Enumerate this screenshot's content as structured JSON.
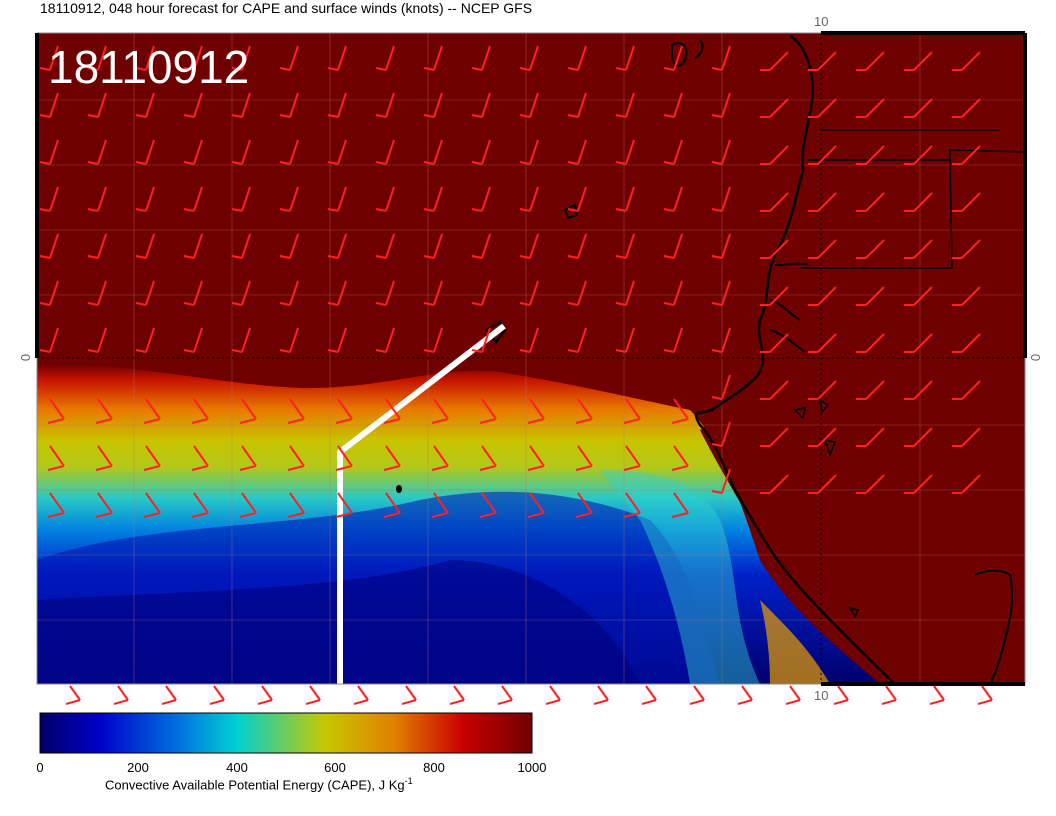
{
  "title": "18110912, 048 hour forecast for CAPE and surface winds (knots) -- NCEP GFS",
  "date_stamp": "18110912",
  "map": {
    "top_lon_label": "10",
    "bottom_lon_label": "10",
    "left_lat_label": "0",
    "right_lat_label": "0",
    "coastline_color": "#000000",
    "wind_barb_color": "#ff2020",
    "route_line_color": "#ffffff"
  },
  "colorbar": {
    "label": "Convective Available Potential Energy (CAPE), J Kg",
    "unit_superscript": "-1",
    "ticks": [
      "0",
      "200",
      "400",
      "600",
      "800",
      "1000"
    ],
    "colors": [
      "#00006e",
      "#0000c8",
      "#0070e0",
      "#00d0d0",
      "#c8c800",
      "#e88000",
      "#c80000",
      "#700000"
    ]
  }
}
